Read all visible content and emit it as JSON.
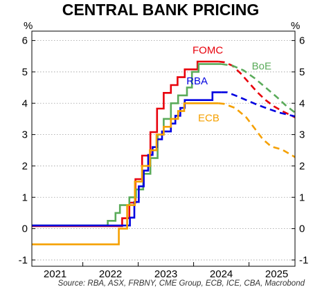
{
  "chart_data": {
    "type": "line",
    "title": "CENTRAL BANK PRICING",
    "unit_left": "%",
    "unit_right": "%",
    "source": "Source: RBA, ASX, FRBNY, CME Group, ECB, ICE, CBA, Macrobond",
    "xlim": [
      2020.58,
      2025.33
    ],
    "ylim": [
      -1.2,
      6.3
    ],
    "y_ticks": [
      -1,
      0,
      1,
      2,
      3,
      4,
      5,
      6
    ],
    "y_tick_labels": [
      "-1",
      "0",
      "1",
      "2",
      "3",
      "4",
      "5",
      "6"
    ],
    "x_labels": [
      {
        "x": 2021.0,
        "label": "2021"
      },
      {
        "x": 2022.0,
        "label": "2022"
      },
      {
        "x": 2023.0,
        "label": "2023"
      },
      {
        "x": 2024.0,
        "label": "2024"
      },
      {
        "x": 2025.0,
        "label": "2025"
      }
    ],
    "x_ticks": [
      2020.58,
      2021.5,
      2022.5,
      2023.5,
      2024.5
    ],
    "grid": "horizontal dotted",
    "series": [
      {
        "name": "FOMC",
        "color": "#e8000b",
        "label": {
          "x": 2023.48,
          "y": 5.58
        },
        "actual": [
          [
            2020.58,
            0.08
          ],
          [
            2022.21,
            0.08
          ],
          [
            2022.21,
            0.33
          ],
          [
            2022.34,
            0.33
          ],
          [
            2022.34,
            0.83
          ],
          [
            2022.45,
            0.83
          ],
          [
            2022.45,
            1.58
          ],
          [
            2022.57,
            1.58
          ],
          [
            2022.57,
            2.33
          ],
          [
            2022.72,
            2.33
          ],
          [
            2022.72,
            3.08
          ],
          [
            2022.84,
            3.08
          ],
          [
            2022.84,
            3.83
          ],
          [
            2022.96,
            3.83
          ],
          [
            2022.96,
            4.33
          ],
          [
            2023.09,
            4.33
          ],
          [
            2023.09,
            4.58
          ],
          [
            2023.21,
            4.58
          ],
          [
            2023.21,
            4.83
          ],
          [
            2023.34,
            4.83
          ],
          [
            2023.34,
            5.08
          ],
          [
            2023.57,
            5.08
          ],
          [
            2023.57,
            5.33
          ],
          [
            2023.95,
            5.33
          ]
        ],
        "forecast": [
          [
            2023.95,
            5.33
          ],
          [
            2024.05,
            5.31
          ],
          [
            2024.2,
            5.2
          ],
          [
            2024.35,
            4.95
          ],
          [
            2024.5,
            4.65
          ],
          [
            2024.65,
            4.35
          ],
          [
            2024.8,
            4.1
          ],
          [
            2024.95,
            3.9
          ],
          [
            2025.1,
            3.75
          ],
          [
            2025.33,
            3.55
          ]
        ]
      },
      {
        "name": "BoE",
        "color": "#5aab5a",
        "label": {
          "x": 2024.55,
          "y": 5.08
        },
        "actual": [
          [
            2020.58,
            0.1
          ],
          [
            2021.95,
            0.1
          ],
          [
            2021.95,
            0.25
          ],
          [
            2022.09,
            0.25
          ],
          [
            2022.09,
            0.5
          ],
          [
            2022.17,
            0.5
          ],
          [
            2022.17,
            0.75
          ],
          [
            2022.34,
            0.75
          ],
          [
            2022.34,
            1.0
          ],
          [
            2022.46,
            1.0
          ],
          [
            2022.46,
            1.25
          ],
          [
            2022.59,
            1.25
          ],
          [
            2022.59,
            1.75
          ],
          [
            2022.72,
            1.75
          ],
          [
            2022.72,
            2.25
          ],
          [
            2022.85,
            2.25
          ],
          [
            2022.85,
            3.0
          ],
          [
            2022.96,
            3.0
          ],
          [
            2022.96,
            3.5
          ],
          [
            2023.09,
            3.5
          ],
          [
            2023.09,
            4.0
          ],
          [
            2023.22,
            4.0
          ],
          [
            2023.22,
            4.25
          ],
          [
            2023.38,
            4.25
          ],
          [
            2023.38,
            4.5
          ],
          [
            2023.47,
            4.5
          ],
          [
            2023.47,
            5.0
          ],
          [
            2023.59,
            5.0
          ],
          [
            2023.59,
            5.25
          ],
          [
            2024.0,
            5.25
          ]
        ],
        "forecast": [
          [
            2024.0,
            5.25
          ],
          [
            2024.2,
            5.2
          ],
          [
            2024.4,
            5.05
          ],
          [
            2024.6,
            4.8
          ],
          [
            2024.8,
            4.5
          ],
          [
            2025.0,
            4.2
          ],
          [
            2025.15,
            3.95
          ],
          [
            2025.33,
            3.7
          ]
        ]
      },
      {
        "name": "RBA",
        "color": "#0000e0",
        "label": {
          "x": 2023.37,
          "y": 4.6
        },
        "actual": [
          [
            2020.58,
            0.1
          ],
          [
            2022.35,
            0.1
          ],
          [
            2022.35,
            0.35
          ],
          [
            2022.43,
            0.35
          ],
          [
            2022.43,
            0.85
          ],
          [
            2022.51,
            0.85
          ],
          [
            2022.51,
            1.35
          ],
          [
            2022.6,
            1.35
          ],
          [
            2022.6,
            1.85
          ],
          [
            2022.68,
            1.85
          ],
          [
            2022.68,
            2.35
          ],
          [
            2022.76,
            2.35
          ],
          [
            2022.76,
            2.6
          ],
          [
            2022.84,
            2.6
          ],
          [
            2022.84,
            2.85
          ],
          [
            2022.93,
            2.85
          ],
          [
            2022.93,
            3.1
          ],
          [
            2023.09,
            3.1
          ],
          [
            2023.09,
            3.35
          ],
          [
            2023.17,
            3.35
          ],
          [
            2023.17,
            3.6
          ],
          [
            2023.26,
            3.6
          ],
          [
            2023.26,
            3.85
          ],
          [
            2023.34,
            3.85
          ],
          [
            2023.34,
            4.1
          ],
          [
            2023.84,
            4.1
          ],
          [
            2023.84,
            4.35
          ],
          [
            2024.0,
            4.35
          ]
        ],
        "forecast": [
          [
            2024.0,
            4.35
          ],
          [
            2024.1,
            4.35
          ],
          [
            2024.25,
            4.25
          ],
          [
            2024.45,
            4.1
          ],
          [
            2024.65,
            3.95
          ],
          [
            2024.85,
            3.82
          ],
          [
            2025.05,
            3.7
          ],
          [
            2025.33,
            3.58
          ]
        ]
      },
      {
        "name": "ECB",
        "color": "#f5a000",
        "label": {
          "x": 2023.58,
          "y": 3.42
        },
        "actual": [
          [
            2020.58,
            -0.5
          ],
          [
            2022.15,
            -0.5
          ],
          [
            2022.15,
            0.0
          ],
          [
            2022.3,
            0.0
          ],
          [
            2022.3,
            0.75
          ],
          [
            2022.44,
            0.75
          ],
          [
            2022.44,
            1.5
          ],
          [
            2022.57,
            1.5
          ],
          [
            2022.57,
            2.0
          ],
          [
            2022.71,
            2.0
          ],
          [
            2022.71,
            2.5
          ],
          [
            2022.83,
            2.5
          ],
          [
            2022.83,
            3.0
          ],
          [
            2022.96,
            3.0
          ],
          [
            2022.96,
            3.25
          ],
          [
            2023.09,
            3.25
          ],
          [
            2023.09,
            3.5
          ],
          [
            2023.22,
            3.5
          ],
          [
            2023.22,
            3.75
          ],
          [
            2023.33,
            3.75
          ],
          [
            2023.33,
            4.0
          ],
          [
            2023.95,
            4.0
          ]
        ],
        "forecast": [
          [
            2023.95,
            4.0
          ],
          [
            2024.05,
            3.98
          ],
          [
            2024.25,
            3.85
          ],
          [
            2024.45,
            3.55
          ],
          [
            2024.6,
            3.2
          ],
          [
            2024.75,
            2.85
          ],
          [
            2024.9,
            2.62
          ],
          [
            2025.1,
            2.52
          ],
          [
            2025.33,
            2.28
          ]
        ]
      }
    ]
  }
}
